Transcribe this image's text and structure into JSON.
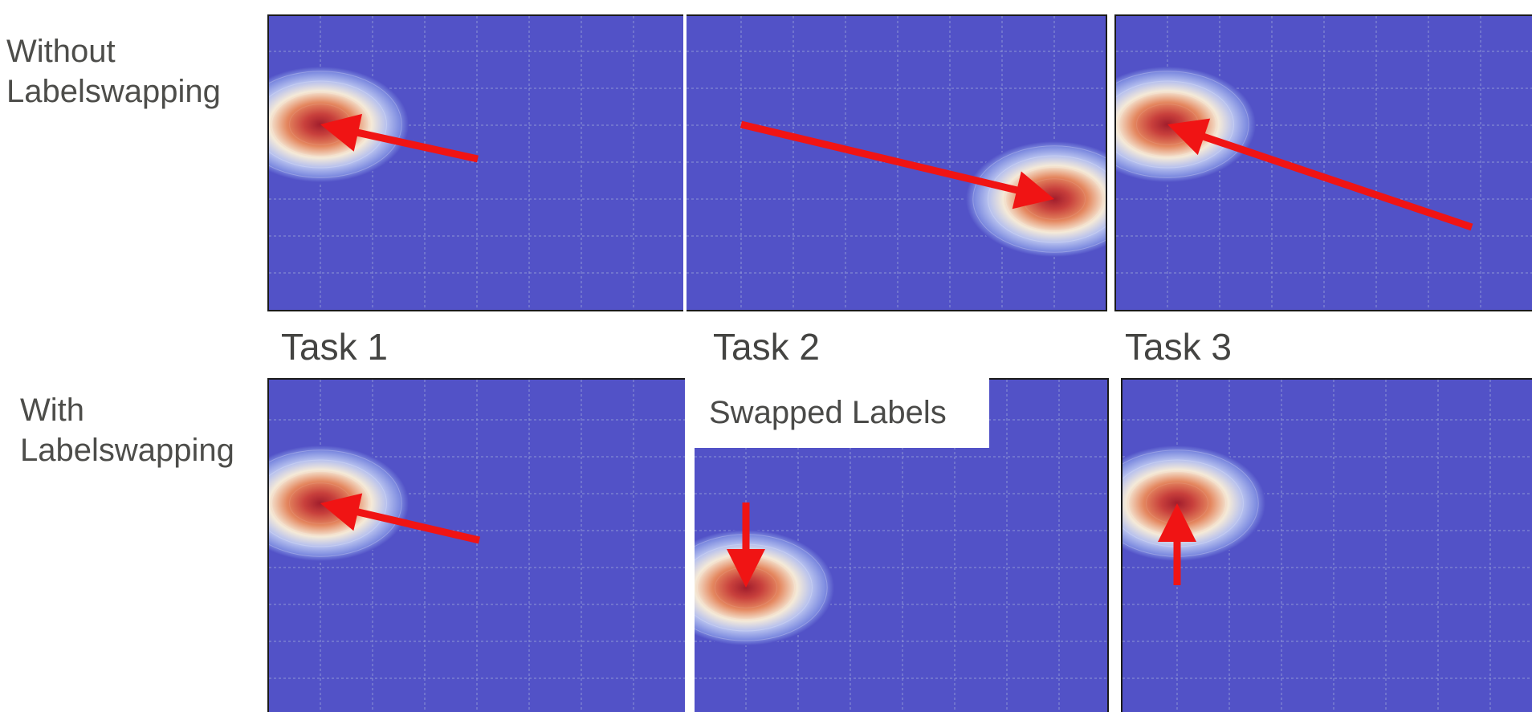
{
  "rows": [
    {
      "label": "Without\nLabelswapping"
    },
    {
      "label": "With\nLabelswapping"
    }
  ],
  "tasks": [
    {
      "label": "Task 1"
    },
    {
      "label": "Task 2"
    },
    {
      "label": "Task 3"
    }
  ],
  "annotation": {
    "text": "Swapped Labels"
  },
  "colors": {
    "background": "#5252c7",
    "grid": "#8f95d6",
    "arrow": "#f01414",
    "blob_core": "#a11d2c",
    "blob_mid": "#e4875f",
    "blob_edge": "#f5ead8",
    "blob_outer": "#7e8ce0"
  }
}
